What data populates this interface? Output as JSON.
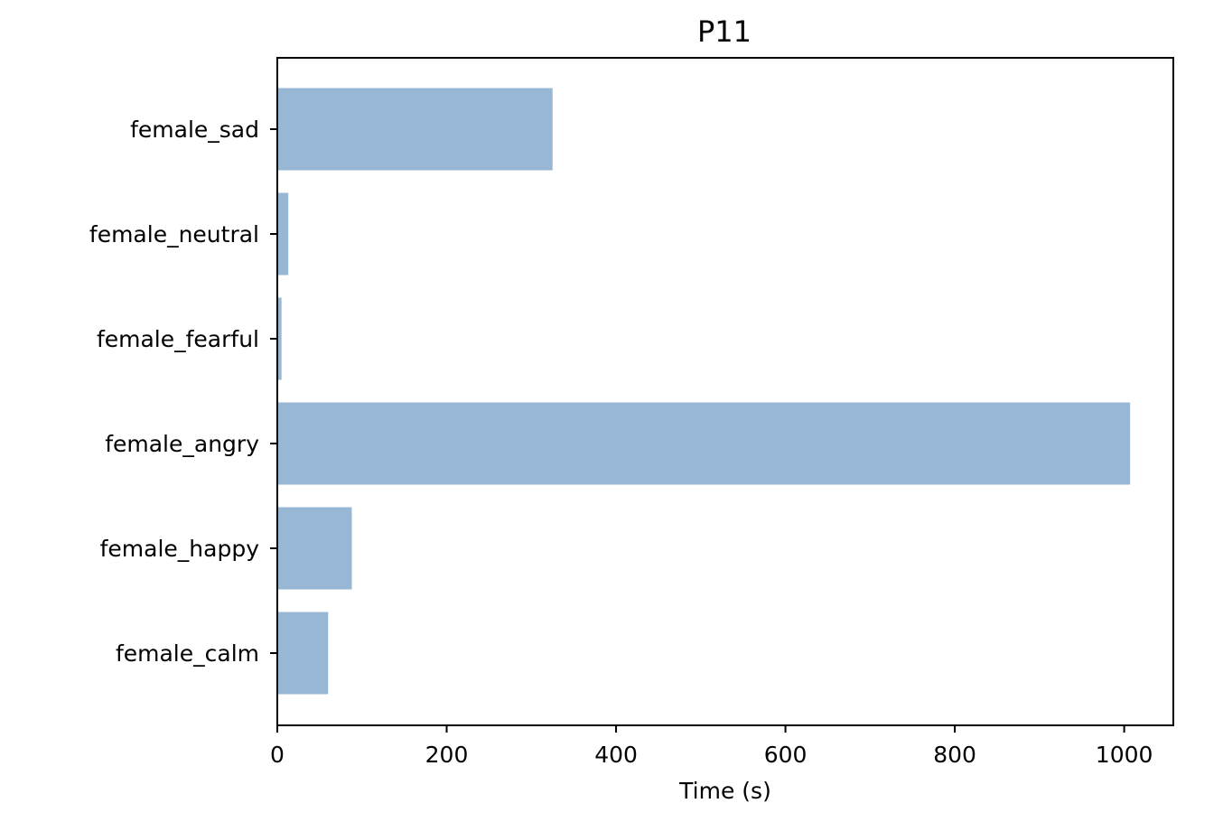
{
  "chart_data": {
    "type": "bar",
    "orientation": "horizontal",
    "title": "P11",
    "xlabel": "Time (s)",
    "ylabel": "",
    "categories": [
      "female_calm",
      "female_happy",
      "female_angry",
      "female_fearful",
      "female_neutral",
      "female_sad"
    ],
    "values": [
      60,
      88,
      1007,
      5,
      13,
      325
    ],
    "xlim": [
      0,
      1058
    ],
    "xticks": [
      0,
      200,
      400,
      600,
      800,
      1000
    ],
    "xtick_labels": [
      "0",
      "200",
      "400",
      "600",
      "800",
      "1000"
    ],
    "grid": false,
    "bar_color": "#97b7d5"
  }
}
